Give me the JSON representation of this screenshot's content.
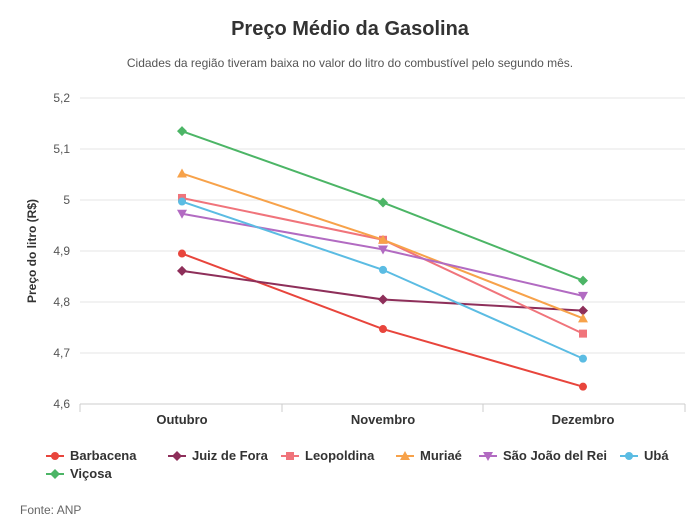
{
  "chart_data": {
    "type": "line",
    "title": "Preço Médio da Gasolina",
    "subtitle": "Cidades da região tiveram baixa no valor do litro do combustível pelo segundo mês.",
    "xlabel": "",
    "ylabel": "Preço do litro (R$)",
    "categories": [
      "Outubro",
      "Novembro",
      "Dezembro"
    ],
    "ylim": [
      4.6,
      5.2
    ],
    "yticks": [
      "5,2",
      "5,1",
      "5",
      "4,9",
      "4,8",
      "4,7",
      "4,6"
    ],
    "ytick_values": [
      5.2,
      5.1,
      5.0,
      4.9,
      4.8,
      4.7,
      4.6
    ],
    "grid": true,
    "legend_position": "bottom",
    "series": [
      {
        "name": "Barbacena",
        "color": "#e8453c",
        "marker": "circle",
        "values": [
          4.895,
          4.747,
          4.634
        ]
      },
      {
        "name": "Juiz de Fora",
        "color": "#8e2f5a",
        "marker": "diamond",
        "values": [
          4.861,
          4.805,
          4.783
        ]
      },
      {
        "name": "Leopoldina",
        "color": "#f0747b",
        "marker": "square",
        "values": [
          5.004,
          4.922,
          4.738
        ]
      },
      {
        "name": "Muriaé",
        "color": "#f7a24a",
        "marker": "triangle-up",
        "values": [
          5.052,
          4.922,
          4.768
        ]
      },
      {
        "name": "São João del Rei",
        "color": "#b26bc2",
        "marker": "triangle-down",
        "values": [
          4.973,
          4.903,
          4.812
        ]
      },
      {
        "name": "Ubá",
        "color": "#5bbce3",
        "marker": "circle",
        "values": [
          4.997,
          4.863,
          4.689
        ]
      },
      {
        "name": "Viçosa",
        "color": "#4cb566",
        "marker": "diamond",
        "values": [
          5.135,
          4.995,
          4.842
        ]
      }
    ],
    "source": "Fonte: ANP"
  }
}
